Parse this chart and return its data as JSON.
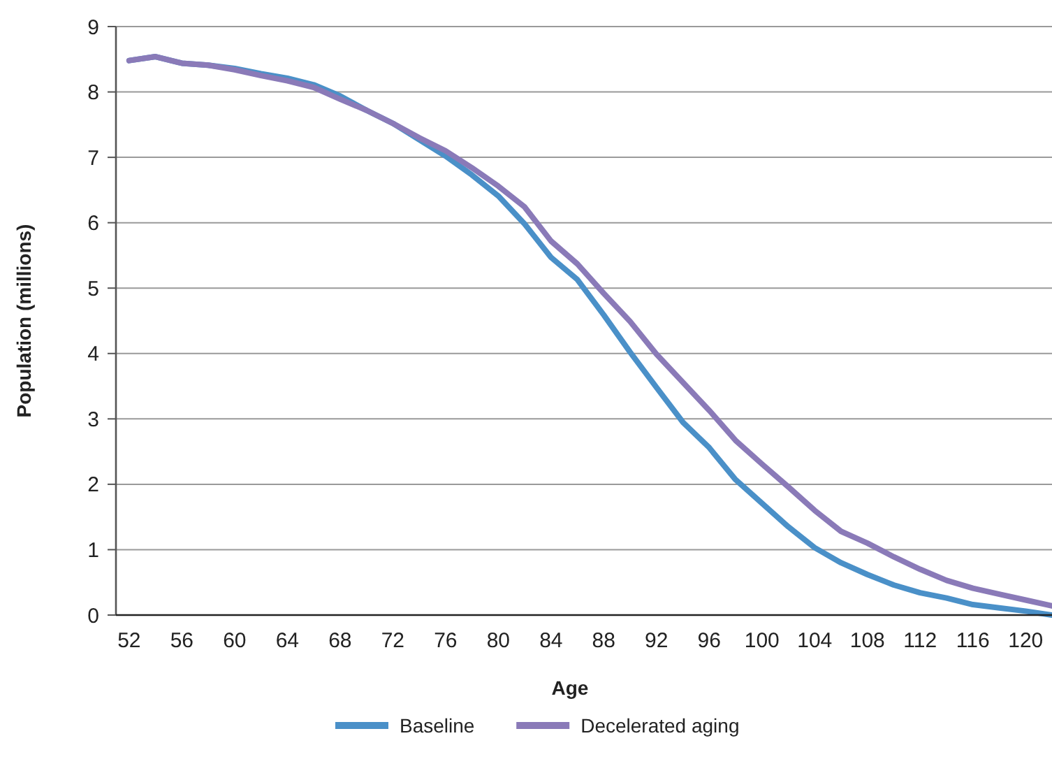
{
  "chart_data": {
    "type": "line",
    "xlabel": "Age",
    "ylabel": "Population (millions)",
    "x": [
      52,
      54,
      56,
      58,
      60,
      62,
      64,
      66,
      68,
      70,
      72,
      74,
      76,
      78,
      80,
      82,
      84,
      86,
      88,
      90,
      92,
      94,
      96,
      98,
      100,
      102,
      104,
      106,
      108,
      110,
      112,
      114,
      116,
      118,
      120,
      122
    ],
    "xlim": [
      51,
      122
    ],
    "xticks": [
      52,
      56,
      60,
      64,
      68,
      72,
      76,
      80,
      84,
      88,
      92,
      96,
      100,
      104,
      108,
      112,
      116,
      120
    ],
    "ylim": [
      0,
      9
    ],
    "yticks": [
      0,
      1,
      2,
      3,
      4,
      5,
      6,
      7,
      8,
      9
    ],
    "grid": "y",
    "legend": "bottom",
    "marker": "none",
    "line_style": "solid",
    "series": [
      {
        "name": "Baseline",
        "color": "#4a90c8",
        "values": [
          8.48,
          8.54,
          8.44,
          8.41,
          8.36,
          8.28,
          8.21,
          8.11,
          7.94,
          7.72,
          7.52,
          7.27,
          7.02,
          6.73,
          6.41,
          5.98,
          5.47,
          5.13,
          4.59,
          4.02,
          3.48,
          2.95,
          2.56,
          2.07,
          1.71,
          1.35,
          1.03,
          0.8,
          0.62,
          0.46,
          0.34,
          0.26,
          0.16,
          0.11,
          0.06,
          0.0
        ]
      },
      {
        "name": "Decelerated aging",
        "color": "#8a7ab8",
        "values": [
          8.48,
          8.54,
          8.44,
          8.41,
          8.34,
          8.25,
          8.17,
          8.07,
          7.89,
          7.72,
          7.52,
          7.3,
          7.1,
          6.84,
          6.56,
          6.24,
          5.72,
          5.37,
          4.92,
          4.49,
          3.99,
          3.56,
          3.13,
          2.67,
          2.31,
          1.96,
          1.6,
          1.28,
          1.1,
          0.89,
          0.7,
          0.53,
          0.41,
          0.32,
          0.23,
          0.14
        ]
      }
    ]
  }
}
